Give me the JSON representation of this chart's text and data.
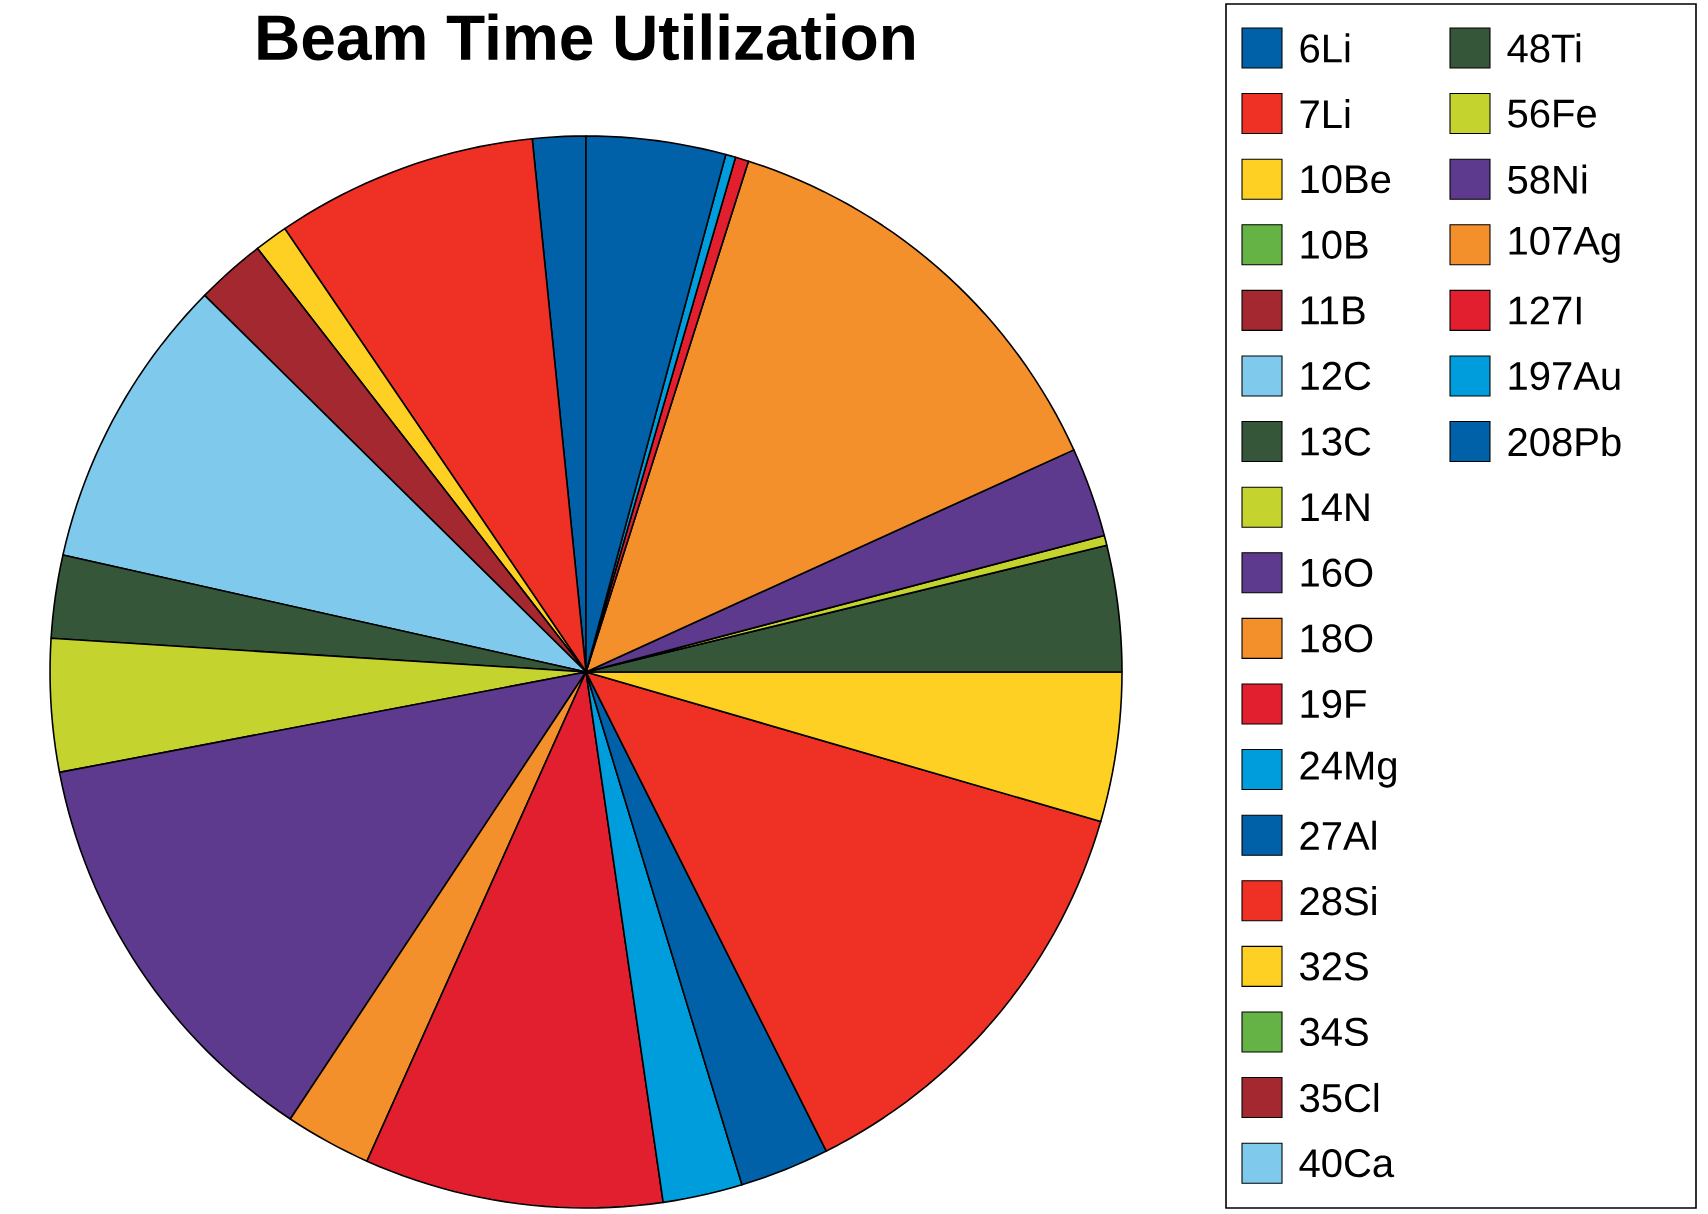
{
  "chart_data": {
    "type": "pie",
    "title": "Beam Time Utilization",
    "categories": [
      "6Li",
      "7Li",
      "10Be",
      "10B",
      "11B",
      "12C",
      "13C",
      "14N",
      "16O",
      "18O",
      "19F",
      "24Mg",
      "27Al",
      "28Si",
      "32S",
      "34S",
      "35Cl",
      "40Ca",
      "48Ti",
      "56Fe",
      "58Ni",
      "107Ag",
      "127I",
      "197Au",
      "208Pb"
    ],
    "values": [
      1.6,
      7.9,
      1.0,
      0,
      2.1,
      8.9,
      2.5,
      4.0,
      12.7,
      2.6,
      9.0,
      2.4,
      2.7,
      13.1,
      4.5,
      0,
      0,
      0,
      3.8,
      0.3,
      2.7,
      13.3,
      0.4,
      0.3,
      4.2
    ],
    "colors": [
      "#0060a8",
      "#ee3124",
      "#fdd023",
      "#65b345",
      "#a4282f",
      "#7fcaec",
      "#36563a",
      "#c5d32e",
      "#5e3a8f",
      "#f3902b",
      "#e21f2f",
      "#009ddc",
      "#0060a8",
      "#ee3124",
      "#fdd023",
      "#65b345",
      "#a4282f",
      "#7fcaec",
      "#36563a",
      "#c5d32e",
      "#5e3a8f",
      "#f3902b",
      "#e21f2f",
      "#009ddc",
      "#0060a8"
    ],
    "legend": "right"
  }
}
